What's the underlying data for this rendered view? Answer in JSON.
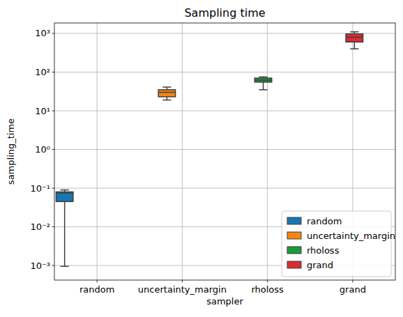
{
  "chart_data": {
    "type": "box",
    "title": "Sampling time",
    "x_label": "sampler",
    "y_label": "sampling_time",
    "categories": [
      "random",
      "uncertainty_margin",
      "rholoss",
      "grand"
    ],
    "series": [
      {
        "name": "random",
        "color": "#1a74b0",
        "min": 0.00095,
        "q1": 0.045,
        "median": 0.075,
        "q3": 0.08,
        "max": 0.09
      },
      {
        "name": "uncertainty_margin",
        "color": "#f7850f",
        "min": 19,
        "q1": 23,
        "median": 30,
        "q3": 35,
        "max": 41
      },
      {
        "name": "rholoss",
        "color": "#1b9a3c",
        "min": 35,
        "q1": 55,
        "median": 62,
        "q3": 70,
        "max": 75
      },
      {
        "name": "grand",
        "color": "#d92d36",
        "min": 400,
        "q1": 600,
        "median": 800,
        "q3": 970,
        "max": 1100
      }
    ],
    "ylim": [
      0.00042,
      1860
    ],
    "yticks": [
      {
        "value": 0.001,
        "label": "10⁻³"
      },
      {
        "value": 0.01,
        "label": "10⁻²"
      },
      {
        "value": 0.1,
        "label": "10⁻¹"
      },
      {
        "value": 1,
        "label": "10⁰"
      },
      {
        "value": 10,
        "label": "10¹"
      },
      {
        "value": 100,
        "label": "10²"
      },
      {
        "value": 1000,
        "label": "10³"
      }
    ],
    "log": "y",
    "grid": true,
    "legend": "lower right"
  }
}
